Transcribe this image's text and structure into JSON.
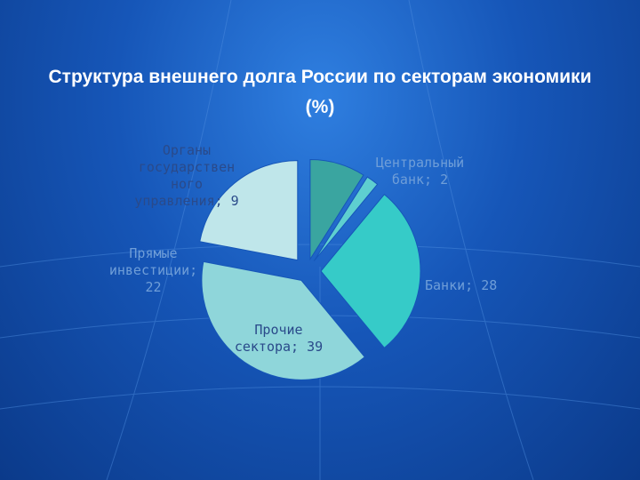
{
  "chart_data": {
    "type": "pie",
    "title": "Структура внешнего долга России по секторам экономики (%)",
    "slices": [
      {
        "label": "Органы государственного управления",
        "value": 9,
        "color": "#3aa5a0"
      },
      {
        "label": "Центральный банк",
        "value": 2,
        "color": "#5ecfd0"
      },
      {
        "label": "Банки",
        "value": 28,
        "color": "#36cbc8"
      },
      {
        "label": "Прочие сектора",
        "value": 39,
        "color": "#8fd6da"
      },
      {
        "label": "Прямые инвестиции",
        "value": 22,
        "color": "#bfe6ea"
      }
    ],
    "data_labels": [
      "Органы государствен ного управления; 9",
      "Центральный банк; 2",
      "Банки; 28",
      "Прочие сектора; 39",
      "Прямые инвестиции; 22"
    ]
  }
}
